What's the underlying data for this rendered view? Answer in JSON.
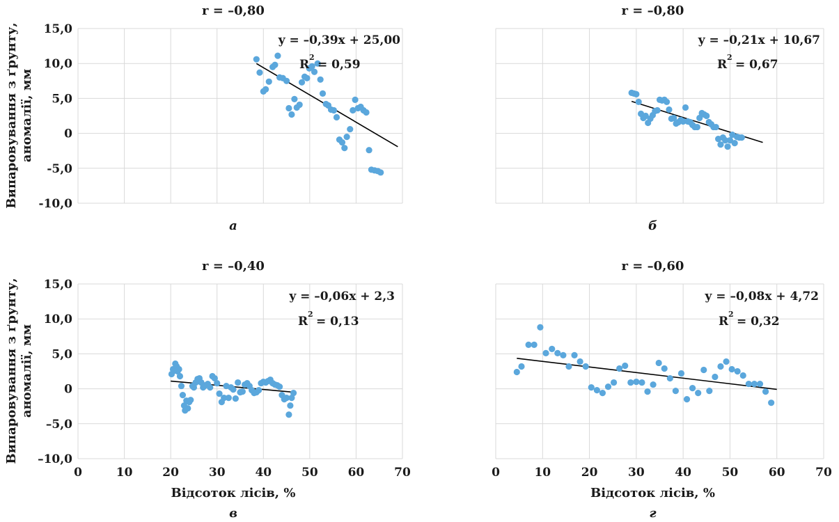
{
  "chart_data": [
    {
      "type": "scatter",
      "title": "r = –0,80",
      "panel_label": "а",
      "equation": "y = –0,39x + 25,00",
      "r2_label": "R",
      "r2_value": "= 0,59",
      "ylabel": "Випаровування з ґрунту, аномалії, мм",
      "xlabel": "",
      "xlim": [
        0,
        70
      ],
      "ylim": [
        -10,
        15
      ],
      "xticks": [
        0,
        10,
        20,
        30,
        40,
        50,
        60,
        70
      ],
      "yticks": [
        "15,0",
        "10,0",
        "5,0",
        "0",
        "-5,0",
        "-10,0"
      ],
      "show_x_tick_labels": false,
      "show_y_tick_labels": true,
      "grid": true,
      "trend": [
        38.5,
        69
      ],
      "trend_fn": [
        -0.39,
        25.0
      ],
      "points": [
        [
          38.5,
          10.6
        ],
        [
          39.2,
          8.7
        ],
        [
          40,
          6
        ],
        [
          40.5,
          6.3
        ],
        [
          41.2,
          7.4
        ],
        [
          42,
          9.5
        ],
        [
          42.5,
          9.8
        ],
        [
          43.1,
          11.1
        ],
        [
          43.5,
          8
        ],
        [
          44.2,
          7.9
        ],
        [
          45,
          7.5
        ],
        [
          45.5,
          3.6
        ],
        [
          46.1,
          2.7
        ],
        [
          46.7,
          4.9
        ],
        [
          47.2,
          3.7
        ],
        [
          47.8,
          4.1
        ],
        [
          48.3,
          7.3
        ],
        [
          48.9,
          8.1
        ],
        [
          49.4,
          7.9
        ],
        [
          49.9,
          9.3
        ],
        [
          50.5,
          9.6
        ],
        [
          51,
          8.8
        ],
        [
          51.7,
          10
        ],
        [
          52.3,
          7.7
        ],
        [
          52.8,
          5.7
        ],
        [
          53.5,
          4.2
        ],
        [
          54,
          4
        ],
        [
          54.6,
          3.4
        ],
        [
          55.2,
          3.3
        ],
        [
          55.8,
          2.3
        ],
        [
          56.4,
          -0.9
        ],
        [
          57,
          -1.3
        ],
        [
          57.5,
          -2.1
        ],
        [
          58,
          -0.5
        ],
        [
          58.7,
          0.6
        ],
        [
          59.3,
          3.3
        ],
        [
          59.8,
          4.8
        ],
        [
          60.4,
          3.6
        ],
        [
          61,
          3.8
        ],
        [
          61.6,
          3.3
        ],
        [
          62.2,
          3
        ],
        [
          62.8,
          -2.4
        ],
        [
          63.3,
          -5.2
        ],
        [
          64,
          -5.3
        ],
        [
          64.7,
          -5.4
        ],
        [
          65.3,
          -5.6
        ]
      ]
    },
    {
      "type": "scatter",
      "title": "r = –0,80",
      "panel_label": "б",
      "equation": "y = –0,21x + 10,67",
      "r2_label": "R",
      "r2_value": "= 0,67",
      "ylabel": "",
      "xlabel": "",
      "xlim": [
        0,
        70
      ],
      "ylim": [
        -10,
        15
      ],
      "xticks": [
        0,
        10,
        20,
        30,
        40,
        50,
        60,
        70
      ],
      "yticks": [
        "15,0",
        "10,0",
        "5,0",
        "0",
        "-5,0",
        "-10,0"
      ],
      "show_x_tick_labels": false,
      "show_y_tick_labels": false,
      "grid": true,
      "trend": [
        29,
        57
      ],
      "trend_fn": [
        -0.21,
        10.67
      ],
      "points": [
        [
          29,
          5.8
        ],
        [
          29.5,
          5.7
        ],
        [
          30,
          5.6
        ],
        [
          30.5,
          4.5
        ],
        [
          31,
          2.8
        ],
        [
          31.5,
          2.2
        ],
        [
          32,
          2.5
        ],
        [
          32.5,
          1.5
        ],
        [
          33,
          2.1
        ],
        [
          33.5,
          2.6
        ],
        [
          34,
          3.2
        ],
        [
          34.5,
          3.3
        ],
        [
          35,
          4.8
        ],
        [
          35.5,
          4.7
        ],
        [
          36,
          4.8
        ],
        [
          36.5,
          4.5
        ],
        [
          37,
          3.4
        ],
        [
          37.5,
          2.1
        ],
        [
          38,
          2.2
        ],
        [
          38.5,
          1.4
        ],
        [
          39,
          1.6
        ],
        [
          39.5,
          1.9
        ],
        [
          40,
          1.7
        ],
        [
          40.5,
          3.7
        ],
        [
          41,
          1.7
        ],
        [
          41.5,
          1.6
        ],
        [
          42,
          1.2
        ],
        [
          42.5,
          0.9
        ],
        [
          43,
          0.9
        ],
        [
          43.5,
          2.2
        ],
        [
          44,
          2.9
        ],
        [
          44.5,
          2.7
        ],
        [
          45,
          2.5
        ],
        [
          45.5,
          1.6
        ],
        [
          46,
          1.3
        ],
        [
          46.5,
          0.9
        ],
        [
          47,
          0.9
        ],
        [
          47.5,
          -0.8
        ],
        [
          48,
          -1.6
        ],
        [
          48.5,
          -0.6
        ],
        [
          49,
          -1
        ],
        [
          49.5,
          -1.9
        ],
        [
          50,
          -1
        ],
        [
          50.5,
          -0.2
        ],
        [
          51,
          -1.4
        ],
        [
          51.5,
          -0.5
        ],
        [
          52,
          -0.6
        ],
        [
          52.5,
          -0.6
        ]
      ]
    },
    {
      "type": "scatter",
      "title": "r = –0,40",
      "panel_label": "в",
      "equation": "y = –0,06x + 2,3",
      "r2_label": "R",
      "r2_value": "= 0,13",
      "ylabel": "Випаровування з ґрунту, аномалії, мм",
      "xlabel": "Відсоток лісів, %",
      "xlim": [
        0,
        70
      ],
      "ylim": [
        -10,
        15
      ],
      "xticks": [
        0,
        10,
        20,
        30,
        40,
        50,
        60,
        70
      ],
      "yticks": [
        "15,0",
        "10,0",
        "5,0",
        "0",
        "–5,0",
        "–10,0"
      ],
      "show_x_tick_labels": true,
      "show_y_tick_labels": true,
      "grid": true,
      "trend": [
        20,
        47
      ],
      "trend_fn": [
        -0.06,
        2.3
      ],
      "points": [
        [
          20.2,
          2.1
        ],
        [
          20.5,
          2.8
        ],
        [
          20.8,
          2.6
        ],
        [
          21,
          3.6
        ],
        [
          21.3,
          3.2
        ],
        [
          21.5,
          2.5
        ],
        [
          21.8,
          2.8
        ],
        [
          22,
          1.8
        ],
        [
          22.3,
          0.4
        ],
        [
          22.6,
          -0.9
        ],
        [
          22.9,
          -2.4
        ],
        [
          23.1,
          -3.1
        ],
        [
          23.4,
          -1.7
        ],
        [
          23.7,
          -2.8
        ],
        [
          24,
          -1.9
        ],
        [
          24.3,
          -1.6
        ],
        [
          24.7,
          0.4
        ],
        [
          25,
          0.2
        ],
        [
          25.4,
          0.9
        ],
        [
          25.8,
          1.4
        ],
        [
          26.2,
          1.5
        ],
        [
          26.6,
          0.9
        ],
        [
          27,
          0.2
        ],
        [
          27.5,
          0.5
        ],
        [
          28,
          0.7
        ],
        [
          28.5,
          0.2
        ],
        [
          29,
          1.8
        ],
        [
          29.5,
          1.5
        ],
        [
          30,
          0.8
        ],
        [
          30.5,
          -0.7
        ],
        [
          31,
          -1.9
        ],
        [
          31.5,
          -1.3
        ],
        [
          32,
          0.4
        ],
        [
          32.5,
          -1.3
        ],
        [
          33,
          0.2
        ],
        [
          33.5,
          -0.1
        ],
        [
          34,
          -1.4
        ],
        [
          34.5,
          0.9
        ],
        [
          35,
          -0.5
        ],
        [
          35.5,
          -0.4
        ],
        [
          36,
          0.6
        ],
        [
          36.5,
          0.8
        ],
        [
          37,
          0.4
        ],
        [
          37.5,
          -0.2
        ],
        [
          38,
          -0.6
        ],
        [
          38.5,
          -0.5
        ],
        [
          39,
          -0.2
        ],
        [
          39.5,
          0.8
        ],
        [
          40,
          1
        ],
        [
          40.5,
          0.9
        ],
        [
          41,
          1.1
        ],
        [
          41.5,
          1.3
        ],
        [
          42,
          0.8
        ],
        [
          42.5,
          0.6
        ],
        [
          43,
          0.5
        ],
        [
          43.5,
          0.3
        ],
        [
          44,
          -0.9
        ],
        [
          44.5,
          -1.5
        ],
        [
          45,
          -1.3
        ],
        [
          45.5,
          -3.7
        ],
        [
          45.8,
          -2.4
        ],
        [
          46.1,
          -1.3
        ],
        [
          46.5,
          -0.6
        ]
      ]
    },
    {
      "type": "scatter",
      "title": "r = –0,60",
      "panel_label": "г",
      "equation": "y = –0,08x + 4,72",
      "r2_label": "R",
      "r2_value": "= 0,32",
      "ylabel": "",
      "xlabel": "Відсоток лісів, %",
      "xlim": [
        0,
        70
      ],
      "ylim": [
        -10,
        15
      ],
      "xticks": [
        0,
        10,
        20,
        30,
        40,
        50,
        60,
        70
      ],
      "yticks": [
        "15,0",
        "10,0",
        "5,0",
        "0",
        "–5,0",
        "–10,0"
      ],
      "show_x_tick_labels": true,
      "show_y_tick_labels": false,
      "grid": true,
      "trend": [
        4.5,
        60
      ],
      "trend_fn": [
        -0.08,
        4.72
      ],
      "points": [
        [
          4.5,
          2.4
        ],
        [
          5.5,
          3.2
        ],
        [
          7,
          6.3
        ],
        [
          8.2,
          6.3
        ],
        [
          9.5,
          8.8
        ],
        [
          10.7,
          5.1
        ],
        [
          12,
          5.7
        ],
        [
          13.2,
          5.1
        ],
        [
          14.4,
          4.8
        ],
        [
          15.6,
          3.2
        ],
        [
          16.8,
          4.8
        ],
        [
          18,
          3.9
        ],
        [
          19.2,
          3.2
        ],
        [
          20.4,
          0.2
        ],
        [
          21.6,
          -0.2
        ],
        [
          22.8,
          -0.6
        ],
        [
          24,
          0.3
        ],
        [
          25.2,
          0.9
        ],
        [
          26.4,
          2.9
        ],
        [
          27.6,
          3.3
        ],
        [
          28.8,
          0.9
        ],
        [
          30,
          1
        ],
        [
          31.2,
          0.9
        ],
        [
          32.4,
          -0.4
        ],
        [
          33.6,
          0.6
        ],
        [
          34.8,
          3.7
        ],
        [
          36,
          2.9
        ],
        [
          37.2,
          1.5
        ],
        [
          38.4,
          -0.3
        ],
        [
          39.6,
          2.2
        ],
        [
          40.8,
          -1.5
        ],
        [
          42,
          0.1
        ],
        [
          43.2,
          -0.6
        ],
        [
          44.4,
          2.7
        ],
        [
          45.6,
          -0.3
        ],
        [
          46.8,
          1.7
        ],
        [
          48,
          3.2
        ],
        [
          49.2,
          3.9
        ],
        [
          50.4,
          2.8
        ],
        [
          51.6,
          2.5
        ],
        [
          52.8,
          1.9
        ],
        [
          54,
          0.7
        ],
        [
          55.2,
          0.7
        ],
        [
          56.4,
          0.7
        ],
        [
          57.6,
          -0.4
        ],
        [
          58.8,
          -2
        ]
      ]
    }
  ]
}
